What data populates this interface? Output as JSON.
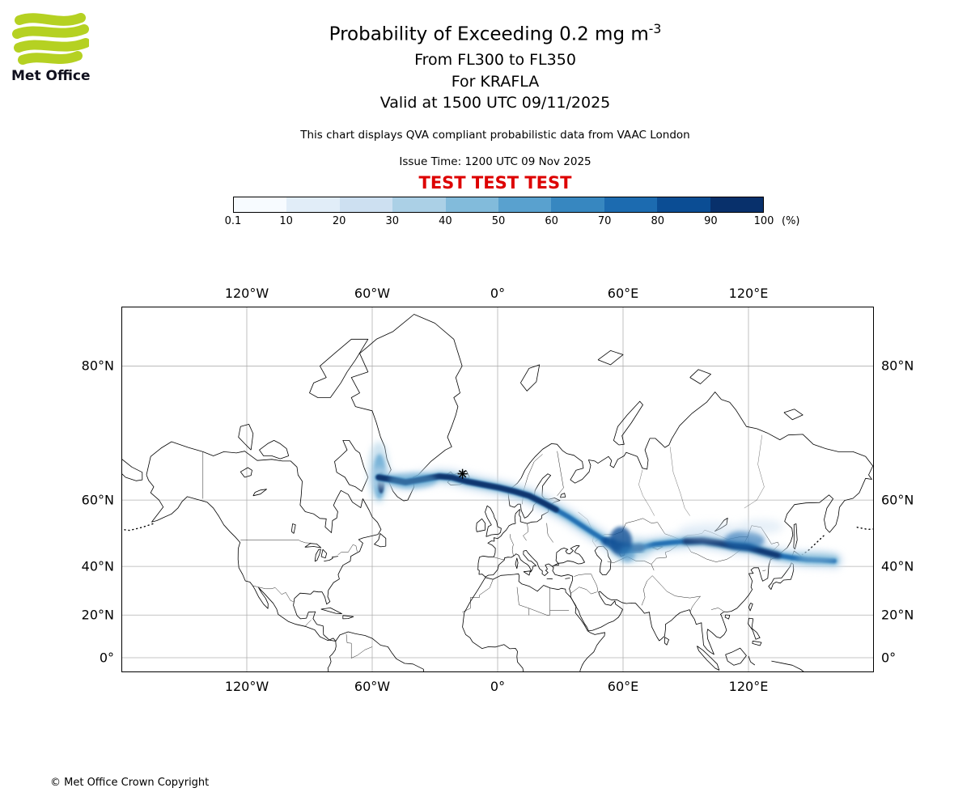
{
  "page": {
    "background": "#ffffff"
  },
  "logo": {
    "text": "Met Office",
    "green": "#b5d122"
  },
  "header": {
    "title_prefix": "Probability of Exceeding 0.2 mg m",
    "title_exponent": "-3",
    "flight_levels": "From FL300 to FL350",
    "volcano_line": "For KRAFLA",
    "valid_line": "Valid at 1500 UTC 09/11/2025",
    "qva_note": "This chart displays QVA compliant probabilistic data from VAAC London",
    "issue_time": "Issue Time: 1200 UTC 09 Nov 2025",
    "test_banner": "TEST TEST TEST",
    "test_color": "#dd0000"
  },
  "colorbar": {
    "labels": [
      "0.1",
      "10",
      "20",
      "30",
      "40",
      "50",
      "60",
      "70",
      "80",
      "90",
      "100"
    ],
    "unit": "(%)",
    "colors": [
      "#f7fbff",
      "#e1edf8",
      "#cde0f1",
      "#abd0e6",
      "#82bbdb",
      "#59a1cf",
      "#3787c0",
      "#1c6bb0",
      "#0b4d94",
      "#08306b"
    ]
  },
  "footer": {
    "copyright": "© Met Office Crown Copyright"
  },
  "chart_data": {
    "type": "geo-probability-map",
    "projection": "mercator",
    "lon_range": [
      -180,
      180
    ],
    "lat_range": [
      -7,
      84
    ],
    "threshold": "0.2 mg m-3",
    "flight_levels": "FL300-FL350",
    "percent_levels": [
      0.1,
      10,
      20,
      30,
      40,
      50,
      60,
      70,
      80,
      90,
      100
    ],
    "grid_lons": [
      -120,
      -60,
      0,
      60,
      120
    ],
    "grid_lats": [
      0,
      20,
      40,
      60,
      80
    ],
    "x_ticks": [
      {
        "label": "120°W",
        "lon": -120
      },
      {
        "label": "60°W",
        "lon": -60
      },
      {
        "label": "0°",
        "lon": 0
      },
      {
        "label": "60°E",
        "lon": 60
      },
      {
        "label": "120°E",
        "lon": 120
      }
    ],
    "y_ticks": [
      {
        "label": "80°N",
        "lat": 80
      },
      {
        "label": "60°N",
        "lat": 60
      },
      {
        "label": "40°N",
        "lat": 40
      },
      {
        "label": "20°N",
        "lat": 20
      },
      {
        "label": "0°",
        "lat": 0
      }
    ],
    "volcano": {
      "name": "KRAFLA",
      "lon": -16.8,
      "lat": 65.7
    },
    "plume": {
      "description": "Ash-cloud probability band stretching from west of Iceland across Scandinavia, Russia and central Asia to the NW Pacific",
      "centerline": [
        [
          -57,
          65
        ],
        [
          -50,
          64.5
        ],
        [
          -44,
          64
        ],
        [
          -36,
          64.6
        ],
        [
          -28,
          65.2
        ],
        [
          -22,
          65
        ],
        [
          -15,
          64.2
        ],
        [
          -8,
          63.6
        ],
        [
          0,
          62.9
        ],
        [
          8,
          62
        ],
        [
          15,
          61
        ],
        [
          22,
          59.3
        ],
        [
          28,
          57.6
        ],
        [
          34,
          55.7
        ],
        [
          40,
          53.4
        ],
        [
          46,
          51
        ],
        [
          52,
          48.6
        ],
        [
          57,
          47
        ],
        [
          62,
          46.2
        ],
        [
          68,
          46.4
        ],
        [
          75,
          47.6
        ],
        [
          82,
          48.1
        ],
        [
          90,
          48.6
        ],
        [
          98,
          48.8
        ],
        [
          106,
          48
        ],
        [
          113,
          47.1
        ],
        [
          120,
          46.6
        ],
        [
          127,
          45.2
        ],
        [
          134,
          43.9
        ],
        [
          141,
          43.1
        ],
        [
          148,
          42.5
        ],
        [
          155,
          42.3
        ],
        [
          161,
          42
        ]
      ],
      "high_probability_lon_ranges": [
        [
          -57,
          28
        ],
        [
          50,
          68
        ],
        [
          86,
          136
        ]
      ]
    }
  }
}
